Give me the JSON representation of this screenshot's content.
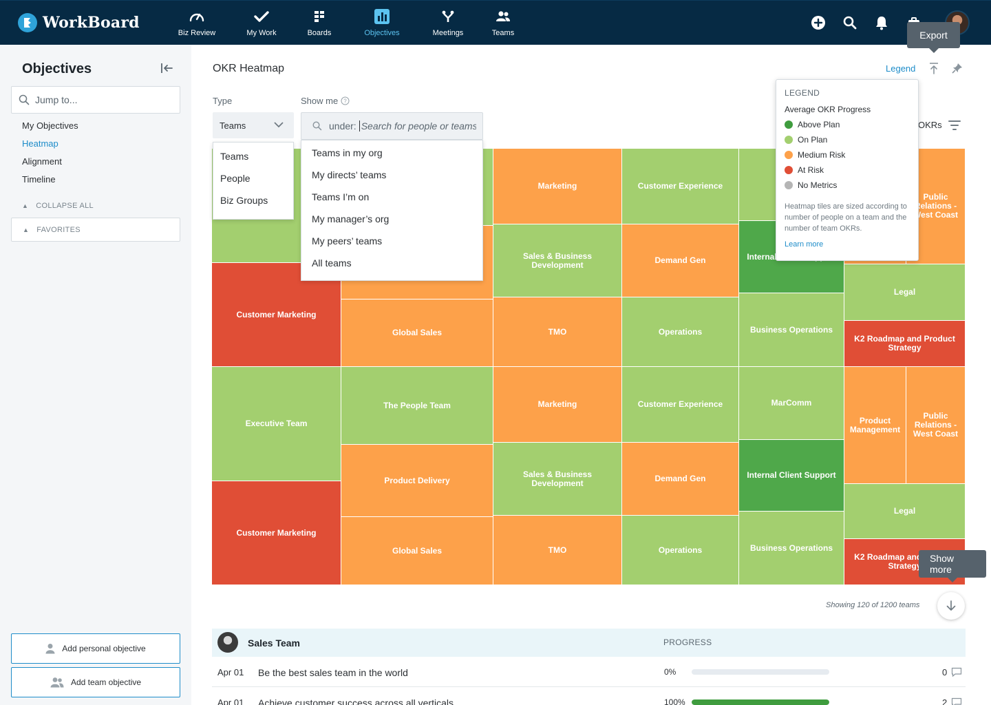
{
  "app": {
    "name": "WorkBoard"
  },
  "nav": [
    {
      "label": "Biz Review",
      "icon": "gauge-icon",
      "active": false
    },
    {
      "label": "My Work",
      "icon": "check-icon",
      "active": false
    },
    {
      "label": "Boards",
      "icon": "boards-icon",
      "active": false
    },
    {
      "label": "Objectives",
      "icon": "bar-chart-icon",
      "active": true
    },
    {
      "label": "Meetings",
      "icon": "meetings-icon",
      "active": false
    },
    {
      "label": "Teams",
      "icon": "teams-icon",
      "active": false
    }
  ],
  "tooltips": {
    "export": "Export",
    "show_more": "Show more"
  },
  "sidebar": {
    "title": "Objectives",
    "search_placeholder": "Jump to...",
    "links": [
      "My Objectives",
      "Heatmap",
      "Alignment",
      "Timeline"
    ],
    "active_link": "Heatmap",
    "collapse_all": "COLLAPSE ALL",
    "favorites": "FAVORITES",
    "add_personal": "Add personal objective",
    "add_team": "Add team objective"
  },
  "main": {
    "title": "OKR Heatmap",
    "legend_link": "Legend",
    "type_label": "Type",
    "show_me_label": "Show me",
    "type_value": "Teams",
    "type_options": [
      "Teams",
      "People",
      "Biz Groups"
    ],
    "search_prefix": "under:",
    "search_placeholder": "Search for people or teams",
    "show_options": [
      "Teams in my org",
      "My directs’ teams",
      "Teams I’m on",
      "My manager’s org",
      "My peers’ teams",
      "All teams"
    ],
    "okrs_label": "OKRs"
  },
  "legend": {
    "title": "LEGEND",
    "subtitle": "Average OKR Progress",
    "items": [
      {
        "label": "Above Plan",
        "color": "#3f9c3e"
      },
      {
        "label": "On Plan",
        "color": "#a3cf6f"
      },
      {
        "label": "Medium Risk",
        "color": "#fda14a"
      },
      {
        "label": "At Risk",
        "color": "#e04e36"
      },
      {
        "label": "No Metrics",
        "color": "#b5b5b5"
      }
    ],
    "note": "Heatmap tiles are sized according to number of people on a team and the number of team OKRs.",
    "learn_more": "Learn more"
  },
  "heatmap": {
    "status_colors": {
      "above": "#4fa84a",
      "on": "#a3cf6f",
      "medium": "#fda14a",
      "risk": "#e04e36"
    },
    "tiles": [
      {
        "label": "",
        "status": "on"
      },
      {
        "label": "",
        "status": "on"
      },
      {
        "label": "",
        "status": "med"
      },
      {
        "label": "Marketing",
        "status": "med"
      },
      {
        "label": "Customer Experience",
        "status": "on"
      },
      {
        "label": "",
        "status": "on"
      },
      {
        "label": "Internal Client Support",
        "status": "above"
      },
      {
        "label": "",
        "status": "med"
      },
      {
        "label": "Public Relations - West Coast",
        "status": "med"
      },
      {
        "label": "Sales & Business Development",
        "status": "on"
      },
      {
        "label": "Demand Gen",
        "status": "med"
      },
      {
        "label": "Legal",
        "status": "on"
      },
      {
        "label": "Customer Marketing",
        "status": "risk"
      },
      {
        "label": "",
        "status": "med"
      },
      {
        "label": "Global Sales",
        "status": "med"
      },
      {
        "label": "TMO",
        "status": "med"
      },
      {
        "label": "Operations",
        "status": "on"
      },
      {
        "label": "Business Operations",
        "status": "on"
      },
      {
        "label": "K2 Roadmap and Product Strategy",
        "status": "risk"
      },
      {
        "label": "Executive Team",
        "status": "on"
      },
      {
        "label": "The People Team",
        "status": "on"
      },
      {
        "label": "Marketing",
        "status": "med"
      },
      {
        "label": "Customer Experience",
        "status": "on"
      },
      {
        "label": "MarComm",
        "status": "on"
      },
      {
        "label": "Product Management",
        "status": "med"
      },
      {
        "label": "Public Relations - West Coast",
        "status": "med"
      },
      {
        "label": "Customer Marketing",
        "status": "risk"
      },
      {
        "label": "Product Delivery",
        "status": "med"
      },
      {
        "label": "Sales & Business Development",
        "status": "on"
      },
      {
        "label": "Demand Gen",
        "status": "med"
      },
      {
        "label": "Internal Client Support",
        "status": "above"
      },
      {
        "label": "Legal",
        "status": "on"
      },
      {
        "label": "Global Sales",
        "status": "med"
      },
      {
        "label": "TMO",
        "status": "med"
      },
      {
        "label": "Operations",
        "status": "on"
      },
      {
        "label": "Business Operations",
        "status": "on"
      },
      {
        "label": "K2 Roadmap and Product Strategy",
        "status": "risk"
      }
    ],
    "showing": "Showing 120 of 1200 teams"
  },
  "team_table": {
    "team_name": "Sales Team",
    "progress_header": "PROGRESS",
    "rows": [
      {
        "date": "Apr 01",
        "text": "Be the best sales team in the world",
        "progress_label": "0%",
        "progress": 0,
        "comments": "0"
      },
      {
        "date": "Apr 01",
        "text": "Achieve customer success across all verticals",
        "progress_label": "100%",
        "progress": 100,
        "comments": "2"
      }
    ]
  }
}
